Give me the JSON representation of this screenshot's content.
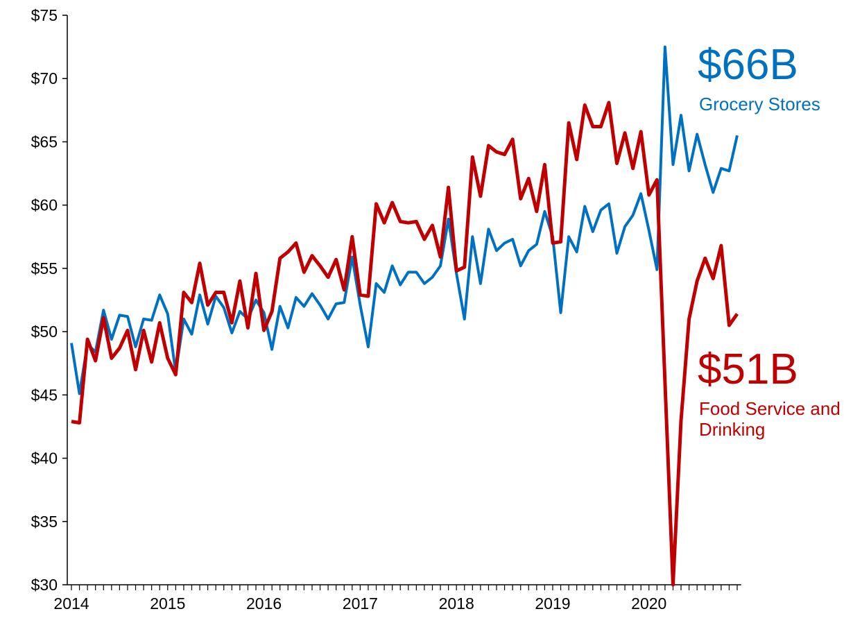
{
  "chart_data": {
    "type": "line",
    "categories": [
      "2014",
      null,
      null,
      null,
      null,
      null,
      null,
      null,
      null,
      null,
      null,
      null,
      "2015",
      null,
      null,
      null,
      null,
      null,
      null,
      null,
      null,
      null,
      null,
      null,
      "2016",
      null,
      null,
      null,
      null,
      null,
      null,
      null,
      null,
      null,
      null,
      null,
      "2017",
      null,
      null,
      null,
      null,
      null,
      null,
      null,
      null,
      null,
      null,
      null,
      "2018",
      null,
      null,
      null,
      null,
      null,
      null,
      null,
      null,
      null,
      null,
      null,
      "2019",
      null,
      null,
      null,
      null,
      null,
      null,
      null,
      null,
      null,
      null,
      null,
      "2020",
      null,
      null,
      null,
      null,
      null,
      null,
      null,
      null,
      null,
      null,
      null
    ],
    "series": [
      {
        "name": "Grocery Stores",
        "color": "#0070c0",
        "label": "$66B",
        "values": [
          49.1,
          45.1,
          49.0,
          48.4,
          51.7,
          49.4,
          51.3,
          51.2,
          48.8,
          51.0,
          50.9,
          52.9,
          51.4,
          46.8,
          51.0,
          49.8,
          52.9,
          50.6,
          52.8,
          51.9,
          49.9,
          51.6,
          51.0,
          52.5,
          51.5,
          48.6,
          52.0,
          50.3,
          52.7,
          52.0,
          53.0,
          52.1,
          51.0,
          52.2,
          52.3,
          55.9,
          52.1,
          48.8,
          53.8,
          53.1,
          55.2,
          53.7,
          54.7,
          54.7,
          53.8,
          54.3,
          55.2,
          58.9,
          54.6,
          51.0,
          57.5,
          53.8,
          58.1,
          56.4,
          57.0,
          57.3,
          55.2,
          56.4,
          56.9,
          59.5,
          57.5,
          51.5,
          57.5,
          56.3,
          59.9,
          57.9,
          59.6,
          60.1,
          56.2,
          58.3,
          59.2,
          60.9,
          58.0,
          54.9,
          72.5,
          63.2,
          67.1,
          62.7,
          65.6,
          63.2,
          61.0,
          62.9,
          62.7,
          65.5
        ]
      },
      {
        "name": "Food Service and Drinking",
        "color": "#c00000",
        "label": "$51B",
        "values": [
          42.9,
          42.8,
          49.4,
          47.7,
          51.1,
          47.9,
          48.7,
          50.1,
          47.0,
          50.1,
          47.6,
          50.7,
          47.9,
          46.6,
          53.1,
          52.3,
          55.4,
          52.1,
          53.1,
          53.1,
          50.7,
          54.0,
          50.3,
          54.6,
          50.1,
          51.6,
          55.8,
          56.3,
          57.0,
          54.7,
          56.0,
          55.2,
          54.3,
          55.7,
          53.3,
          57.5,
          52.9,
          52.8,
          60.1,
          58.6,
          60.2,
          58.7,
          58.6,
          58.7,
          57.3,
          58.4,
          55.9,
          61.4,
          54.8,
          55.1,
          63.8,
          60.7,
          64.7,
          64.2,
          64.0,
          65.2,
          60.5,
          62.1,
          59.5,
          63.2,
          57.0,
          57.1,
          66.5,
          63.6,
          67.9,
          66.2,
          66.2,
          68.1,
          63.3,
          65.7,
          62.9,
          65.8,
          60.8,
          62.0,
          46.0,
          30.0,
          43.0,
          51.0,
          54.0,
          55.8,
          54.2,
          56.8,
          50.5,
          51.4
        ]
      }
    ],
    "ylim": [
      30,
      75
    ],
    "yticks": [
      {
        "value": 30,
        "label": "$30"
      },
      {
        "value": 35,
        "label": "$35"
      },
      {
        "value": 40,
        "label": "$40"
      },
      {
        "value": 45,
        "label": "$45"
      },
      {
        "value": 50,
        "label": "$50"
      },
      {
        "value": 55,
        "label": "$55"
      },
      {
        "value": 60,
        "label": "$60"
      },
      {
        "value": 65,
        "label": "$65"
      },
      {
        "value": 70,
        "label": "$70"
      },
      {
        "value": 75,
        "label": "$75"
      }
    ],
    "grid": false
  }
}
